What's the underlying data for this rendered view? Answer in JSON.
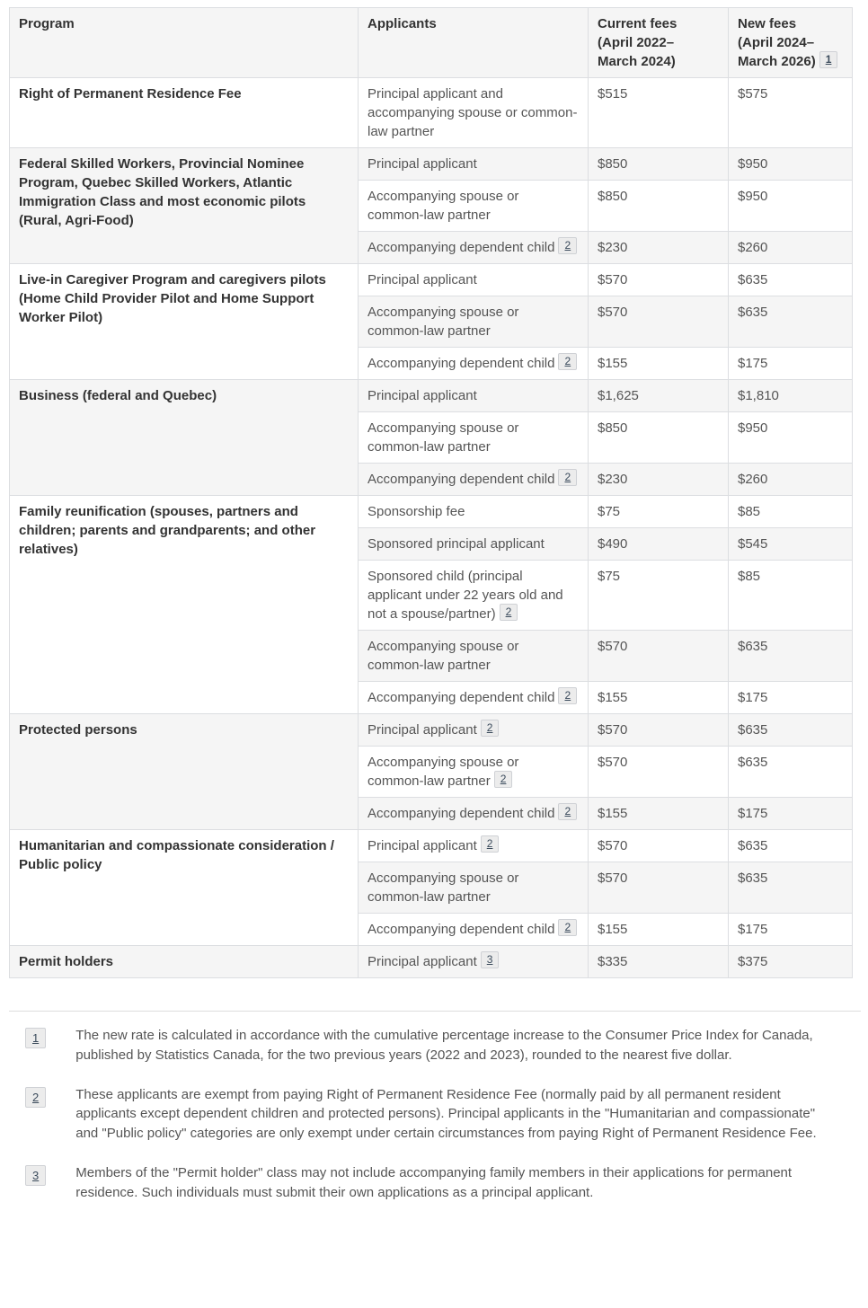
{
  "colors": {
    "stripe_bg": "#f5f5f5",
    "header_bg": "#f5f5f5",
    "border": "#dcdee1",
    "body_text": "#555555",
    "heading_text": "#333333",
    "footnote_chip_bg": "#ececec",
    "footnote_chip_border": "#cfd1d5",
    "footnote_link_text": "#3b4b5c"
  },
  "table": {
    "columns": [
      {
        "id": "program",
        "label": "Program"
      },
      {
        "id": "applicants",
        "label": "Applicants"
      },
      {
        "id": "current-fees",
        "label": "Current fees (April 2022–March 2024)",
        "lines": [
          "Current fees",
          "(April 2022–",
          "March 2024)"
        ]
      },
      {
        "id": "new-fees",
        "label": "New fees (April 2024–March 2026)",
        "lines": [
          "New fees",
          "(April 2024–",
          "March 2026)"
        ],
        "footnote": "1"
      }
    ],
    "groups": [
      {
        "program": "Right of Permanent Residence Fee",
        "rows": [
          {
            "applicant": "Principal applicant and accompanying spouse or common-law partner",
            "current": "$515",
            "new": "$575"
          }
        ]
      },
      {
        "program": "Federal Skilled Workers, Provincial Nominee Program, Quebec Skilled Workers, Atlantic Immigration Class and most economic pilots (Rural, Agri-Food)",
        "rows": [
          {
            "applicant": "Principal applicant",
            "current": "$850",
            "new": "$950"
          },
          {
            "applicant": "Accompanying spouse or common-law partner",
            "current": "$850",
            "new": "$950"
          },
          {
            "applicant": "Accompanying dependent child",
            "footnote": "2",
            "current": "$230",
            "new": "$260"
          }
        ]
      },
      {
        "program": "Live-in Caregiver Program and caregivers pilots (Home Child Provider Pilot and Home Support Worker Pilot)",
        "rows": [
          {
            "applicant": "Principal applicant",
            "current": "$570",
            "new": "$635"
          },
          {
            "applicant": "Accompanying spouse or common-law partner",
            "current": "$570",
            "new": "$635"
          },
          {
            "applicant": "Accompanying dependent child",
            "footnote": "2",
            "current": "$155",
            "new": "$175"
          }
        ]
      },
      {
        "program": "Business (federal and Quebec)",
        "rows": [
          {
            "applicant": "Principal applicant",
            "current": "$1,625",
            "new": "$1,810"
          },
          {
            "applicant": "Accompanying spouse or common-law partner",
            "current": "$850",
            "new": "$950"
          },
          {
            "applicant": "Accompanying dependent child",
            "footnote": "2",
            "current": "$230",
            "new": "$260"
          }
        ]
      },
      {
        "program": "Family reunification (spouses, partners and children; parents and grandparents; and other relatives)",
        "rows": [
          {
            "applicant": "Sponsorship fee",
            "current": "$75",
            "new": "$85"
          },
          {
            "applicant": "Sponsored principal applicant",
            "current": "$490",
            "new": "$545"
          },
          {
            "applicant": "Sponsored child (principal applicant under 22 years old and not a spouse/partner)",
            "footnote": "2",
            "current": "$75",
            "new": "$85"
          },
          {
            "applicant": "Accompanying spouse or common-law partner",
            "current": "$570",
            "new": "$635"
          },
          {
            "applicant": "Accompanying dependent child",
            "footnote": "2",
            "current": "$155",
            "new": "$175"
          }
        ]
      },
      {
        "program": "Protected persons",
        "rows": [
          {
            "applicant": "Principal applicant",
            "footnote": "2",
            "current": "$570",
            "new": "$635"
          },
          {
            "applicant": "Accompanying spouse or common-law partner",
            "footnote": "2",
            "current": "$570",
            "new": "$635"
          },
          {
            "applicant": "Accompanying dependent child",
            "footnote": "2",
            "current": "$155",
            "new": "$175"
          }
        ]
      },
      {
        "program": "Humanitarian and compassionate consideration / Public policy",
        "rows": [
          {
            "applicant": "Principal applicant",
            "footnote": "2",
            "current": "$570",
            "new": "$635"
          },
          {
            "applicant": "Accompanying spouse or common-law partner",
            "current": "$570",
            "new": "$635"
          },
          {
            "applicant": "Accompanying dependent child",
            "footnote": "2",
            "current": "$155",
            "new": "$175"
          }
        ]
      },
      {
        "program": "Permit holders",
        "rows": [
          {
            "applicant": "Principal applicant",
            "footnote": "3",
            "current": "$335",
            "new": "$375"
          }
        ]
      }
    ]
  },
  "footnotes": [
    {
      "id": "1",
      "text": "The new rate is calculated in accordance with the cumulative percentage increase to the Consumer Price Index for Canada, published by Statistics Canada, for the two previous years (2022 and 2023), rounded to the nearest five dollar."
    },
    {
      "id": "2",
      "text": "These applicants are exempt from paying Right of Permanent Residence Fee (normally paid by all permanent resident applicants except dependent children and protected persons). Principal applicants in the \"Humanitarian and compassionate\" and \"Public policy\" categories are only exempt under certain circumstances from paying Right of Permanent Residence Fee."
    },
    {
      "id": "3",
      "text": "Members of the \"Permit holder\" class may not include accompanying family members in their applications for permanent residence. Such individuals must submit their own applications as a principal applicant."
    }
  ]
}
